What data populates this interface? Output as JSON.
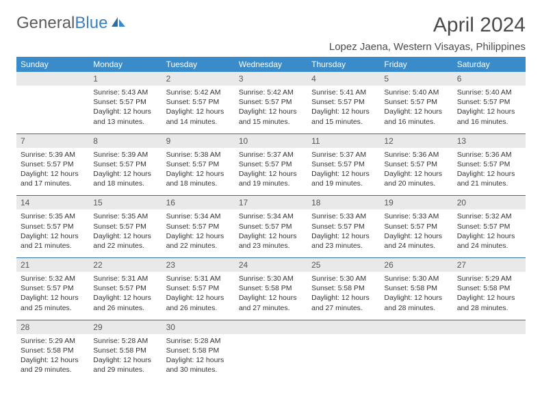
{
  "brand": {
    "part1": "General",
    "part2": "Blue"
  },
  "title": "April 2024",
  "location": "Lopez Jaena, Western Visayas, Philippines",
  "colors": {
    "header_bg": "#3a8bc9",
    "header_text": "#ffffff",
    "daynum_bg": "#e9e9e9",
    "rule": "#2e6fa3",
    "text": "#333333"
  },
  "day_headers": [
    "Sunday",
    "Monday",
    "Tuesday",
    "Wednesday",
    "Thursday",
    "Friday",
    "Saturday"
  ],
  "weeks": [
    {
      "nums": [
        "",
        "1",
        "2",
        "3",
        "4",
        "5",
        "6"
      ],
      "sunrise": [
        "",
        "5:43 AM",
        "5:42 AM",
        "5:42 AM",
        "5:41 AM",
        "5:40 AM",
        "5:40 AM"
      ],
      "sunset": [
        "",
        "5:57 PM",
        "5:57 PM",
        "5:57 PM",
        "5:57 PM",
        "5:57 PM",
        "5:57 PM"
      ],
      "day_h": [
        "",
        "12",
        "12",
        "12",
        "12",
        "12",
        "12"
      ],
      "day_m": [
        "",
        "13",
        "14",
        "15",
        "15",
        "16",
        "16"
      ]
    },
    {
      "nums": [
        "7",
        "8",
        "9",
        "10",
        "11",
        "12",
        "13"
      ],
      "sunrise": [
        "5:39 AM",
        "5:39 AM",
        "5:38 AM",
        "5:37 AM",
        "5:37 AM",
        "5:36 AM",
        "5:36 AM"
      ],
      "sunset": [
        "5:57 PM",
        "5:57 PM",
        "5:57 PM",
        "5:57 PM",
        "5:57 PM",
        "5:57 PM",
        "5:57 PM"
      ],
      "day_h": [
        "12",
        "12",
        "12",
        "12",
        "12",
        "12",
        "12"
      ],
      "day_m": [
        "17",
        "18",
        "18",
        "19",
        "19",
        "20",
        "21"
      ]
    },
    {
      "nums": [
        "14",
        "15",
        "16",
        "17",
        "18",
        "19",
        "20"
      ],
      "sunrise": [
        "5:35 AM",
        "5:35 AM",
        "5:34 AM",
        "5:34 AM",
        "5:33 AM",
        "5:33 AM",
        "5:32 AM"
      ],
      "sunset": [
        "5:57 PM",
        "5:57 PM",
        "5:57 PM",
        "5:57 PM",
        "5:57 PM",
        "5:57 PM",
        "5:57 PM"
      ],
      "day_h": [
        "12",
        "12",
        "12",
        "12",
        "12",
        "12",
        "12"
      ],
      "day_m": [
        "21",
        "22",
        "22",
        "23",
        "23",
        "24",
        "24"
      ]
    },
    {
      "nums": [
        "21",
        "22",
        "23",
        "24",
        "25",
        "26",
        "27"
      ],
      "sunrise": [
        "5:32 AM",
        "5:31 AM",
        "5:31 AM",
        "5:30 AM",
        "5:30 AM",
        "5:30 AM",
        "5:29 AM"
      ],
      "sunset": [
        "5:57 PM",
        "5:57 PM",
        "5:57 PM",
        "5:58 PM",
        "5:58 PM",
        "5:58 PM",
        "5:58 PM"
      ],
      "day_h": [
        "12",
        "12",
        "12",
        "12",
        "12",
        "12",
        "12"
      ],
      "day_m": [
        "25",
        "26",
        "26",
        "27",
        "27",
        "28",
        "28"
      ]
    },
    {
      "nums": [
        "28",
        "29",
        "30",
        "",
        "",
        "",
        ""
      ],
      "sunrise": [
        "5:29 AM",
        "5:28 AM",
        "5:28 AM",
        "",
        "",
        "",
        ""
      ],
      "sunset": [
        "5:58 PM",
        "5:58 PM",
        "5:58 PM",
        "",
        "",
        "",
        ""
      ],
      "day_h": [
        "12",
        "12",
        "12",
        "",
        "",
        "",
        ""
      ],
      "day_m": [
        "29",
        "29",
        "30",
        "",
        "",
        "",
        ""
      ]
    }
  ],
  "labels": {
    "sunrise": "Sunrise:",
    "sunset": "Sunset:",
    "daylight_pre": "Daylight:",
    "hours_word": "hours",
    "and_word": "and",
    "minutes_word": "minutes."
  }
}
